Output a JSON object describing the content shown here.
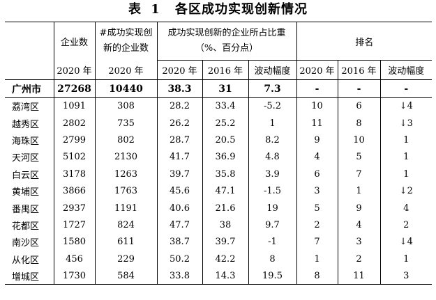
{
  "caption": {
    "prefix": "表",
    "number": "1",
    "text": "各区成功实现创新情况"
  },
  "headers": {
    "firms": "企业数",
    "innov_firms_l1": "#成功实现创",
    "innov_firms_l2": "新的企业数",
    "share_l1": "成功实现创新的企业所占比重",
    "share_l2": "（%、百分点）",
    "rank": "排名",
    "y2020": "2020 年",
    "y2016": "2016 年",
    "change": "波动幅度"
  },
  "total": {
    "area": "广州市",
    "firms": "27268",
    "innov": "10440",
    "share2020": "38.3",
    "share2016": "31",
    "change": "7.3",
    "rank2020": "-",
    "rank2016": "-",
    "rankchange": "-"
  },
  "rows": [
    {
      "area": "荔湾区",
      "firms": "1091",
      "innov": "308",
      "share2020": "28.2",
      "share2016": "33.4",
      "change": "-5.2",
      "rank2020": "10",
      "rank2016": "6",
      "rankchange": "↓4"
    },
    {
      "area": "越秀区",
      "firms": "2802",
      "innov": "735",
      "share2020": "26.2",
      "share2016": "25.2",
      "change": "1",
      "rank2020": "11",
      "rank2016": "8",
      "rankchange": "↓3"
    },
    {
      "area": "海珠区",
      "firms": "2799",
      "innov": "802",
      "share2020": "28.7",
      "share2016": "20.5",
      "change": "8.2",
      "rank2020": "9",
      "rank2016": "10",
      "rankchange": "1"
    },
    {
      "area": "天河区",
      "firms": "5102",
      "innov": "2130",
      "share2020": "41.7",
      "share2016": "36.9",
      "change": "4.8",
      "rank2020": "4",
      "rank2016": "5",
      "rankchange": "1"
    },
    {
      "area": "白云区",
      "firms": "3178",
      "innov": "1263",
      "share2020": "39.7",
      "share2016": "35.8",
      "change": "3.9",
      "rank2020": "6",
      "rank2016": "7",
      "rankchange": "1"
    },
    {
      "area": "黄埔区",
      "firms": "3866",
      "innov": "1763",
      "share2020": "45.6",
      "share2016": "47.1",
      "change": "-1.5",
      "rank2020": "3",
      "rank2016": "1",
      "rankchange": "↓2"
    },
    {
      "area": "番禺区",
      "firms": "2937",
      "innov": "1191",
      "share2020": "40.6",
      "share2016": "21.6",
      "change": "19",
      "rank2020": "5",
      "rank2016": "9",
      "rankchange": "4"
    },
    {
      "area": "花都区",
      "firms": "1727",
      "innov": "824",
      "share2020": "47.7",
      "share2016": "38",
      "change": "9.7",
      "rank2020": "2",
      "rank2016": "4",
      "rankchange": "2"
    },
    {
      "area": "南沙区",
      "firms": "1580",
      "innov": "611",
      "share2020": "38.7",
      "share2016": "39.7",
      "change": "-1",
      "rank2020": "7",
      "rank2016": "3",
      "rankchange": "↓4"
    },
    {
      "area": "从化区",
      "firms": "456",
      "innov": "229",
      "share2020": "50.2",
      "share2016": "42.2",
      "change": "8",
      "rank2020": "1",
      "rank2016": "2",
      "rankchange": "1"
    },
    {
      "area": "增城区",
      "firms": "1730",
      "innov": "584",
      "share2020": "33.8",
      "share2016": "14.3",
      "change": "19.5",
      "rank2020": "8",
      "rank2016": "11",
      "rankchange": "3"
    }
  ]
}
